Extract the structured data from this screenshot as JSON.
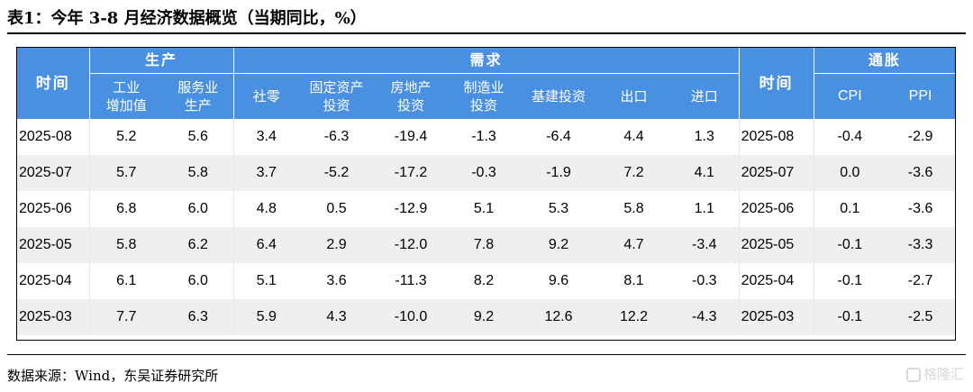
{
  "title": "表1：今年 3-8 月经济数据概览（当期同比，%）",
  "groups": {
    "time": "时间",
    "production": "生产",
    "demand": "需求",
    "inflation": "通胀"
  },
  "columns": {
    "industrial": "工业\n增加值",
    "services": "服务业\n生产",
    "retail": "社零",
    "fixed_asset": "固定资产\n投资",
    "real_estate": "房地产\n投资",
    "manufacturing": "制造业\n投资",
    "infrastructure": "基建投资",
    "exports": "出口",
    "imports": "进口",
    "cpi": "CPI",
    "ppi": "PPI"
  },
  "rows": [
    [
      "2025-08",
      "5.2",
      "5.6",
      "3.4",
      "-6.3",
      "-19.4",
      "-1.3",
      "-6.4",
      "4.4",
      "1.3",
      "2025-08",
      "-0.4",
      "-2.9"
    ],
    [
      "2025-07",
      "5.7",
      "5.8",
      "3.7",
      "-5.2",
      "-17.2",
      "-0.3",
      "-1.9",
      "7.2",
      "4.1",
      "2025-07",
      "0.0",
      "-3.6"
    ],
    [
      "2025-06",
      "6.8",
      "6.0",
      "4.8",
      "0.5",
      "-12.9",
      "5.1",
      "5.3",
      "5.8",
      "1.1",
      "2025-06",
      "0.1",
      "-3.6"
    ],
    [
      "2025-05",
      "5.8",
      "6.2",
      "6.4",
      "2.9",
      "-12.0",
      "7.8",
      "9.2",
      "4.7",
      "-3.4",
      "2025-05",
      "-0.1",
      "-3.3"
    ],
    [
      "2025-04",
      "6.1",
      "6.0",
      "5.1",
      "3.6",
      "-11.3",
      "8.2",
      "9.6",
      "8.1",
      "-0.3",
      "2025-04",
      "-0.1",
      "-2.7"
    ],
    [
      "2025-03",
      "7.7",
      "6.3",
      "5.9",
      "4.3",
      "-10.0",
      "9.2",
      "12.6",
      "12.2",
      "-4.3",
      "2025-03",
      "-0.1",
      "-2.5"
    ]
  ],
  "source": "数据来源：Wind，东吴证券研究所",
  "watermark": "格隆汇",
  "colors": {
    "header_bg": "#4a90e2",
    "header_text": "#ffffff",
    "alt_row": "#efefef"
  }
}
